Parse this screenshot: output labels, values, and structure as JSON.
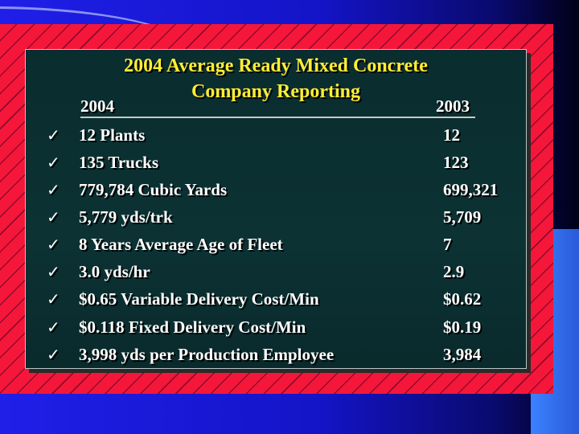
{
  "slide": {
    "title_line1": "2004 Average Ready Mixed Concrete",
    "title_line2": "Company Reporting",
    "col_2004": "2004",
    "col_2003": "2003",
    "check_glyph": "✓",
    "colors": {
      "title": "#ffee33",
      "panel_background": "#0c3234",
      "red_frame": "#f5173a",
      "blue_background": "#1f1fe8",
      "text": "#ffffff"
    },
    "rows": [
      {
        "item": "12 Plants",
        "value": "12"
      },
      {
        "item": "135 Trucks",
        "value": "123"
      },
      {
        "item": "779,784 Cubic Yards",
        "value": "699,321"
      },
      {
        "item": "5,779 yds/trk",
        "value": "5,709"
      },
      {
        "item": "8 Years Average Age of Fleet",
        "value": "7"
      },
      {
        "item": "3.0 yds/hr",
        "value": "2.9"
      },
      {
        "item": "$0.65 Variable Delivery Cost/Min",
        "value": "$0.62"
      },
      {
        "item": "$0.118 Fixed Delivery Cost/Min",
        "value": "$0.19"
      },
      {
        "item": "3,998 yds per Production Employee",
        "value": "3,984"
      }
    ]
  }
}
